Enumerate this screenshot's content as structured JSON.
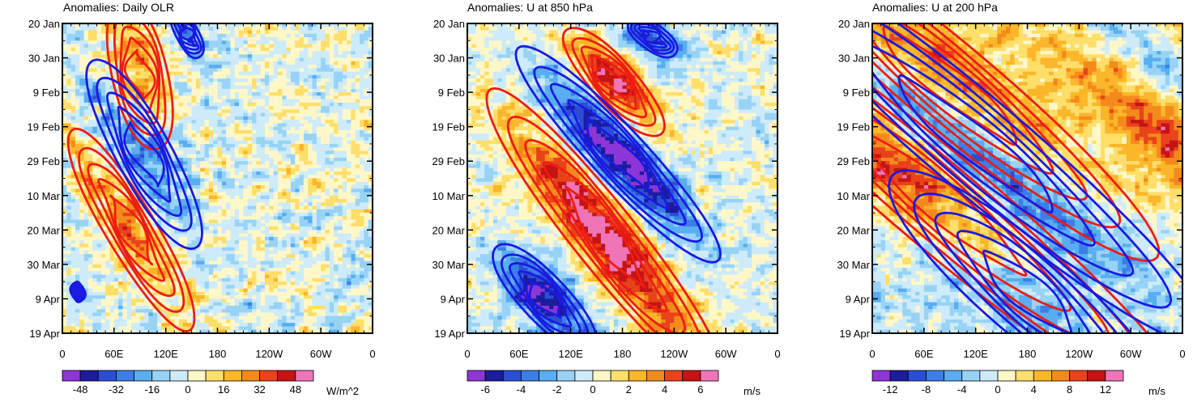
{
  "chart_data": [
    {
      "type": "heatmap",
      "title": "Anomalies: Daily OLR",
      "x_tick_labels": [
        "0",
        "60E",
        "120E",
        "180",
        "120W",
        "60W",
        "0"
      ],
      "x_ticks_deg": [
        0,
        60,
        120,
        180,
        240,
        300,
        360
      ],
      "xlim": [
        0,
        360
      ],
      "y_tick_labels": [
        "20 Jan",
        "30 Jan",
        "9 Feb",
        "19 Feb",
        "29 Feb",
        "10 Mar",
        "20 Mar",
        "30 Mar",
        "9 Apr",
        "19 Apr"
      ],
      "colorbar_labels": [
        "-48",
        "-32",
        "-16",
        "0",
        "16",
        "32",
        "48"
      ],
      "colorbar_levels": [
        -56,
        -48,
        -40,
        -32,
        -24,
        -16,
        -8,
        0,
        8,
        16,
        24,
        32,
        40,
        48,
        56
      ],
      "units": "W/m^2",
      "max_anomaly": 56,
      "red_contour_bands": [
        {
          "center_day": 15,
          "center_lon": 90,
          "lon_shift_per_day": 0.8,
          "width_deg": 22,
          "half_length_days": 11,
          "strength": 1.0
        },
        {
          "center_day": 60,
          "center_lon": 80,
          "lon_shift_per_day": 2.2,
          "width_deg": 22,
          "half_length_days": 15,
          "strength": 1.0
        }
      ],
      "blue_contour_bands": [
        {
          "center_day": 38,
          "center_lon": 95,
          "lon_shift_per_day": 2.0,
          "width_deg": 24,
          "half_length_days": 14,
          "strength": 1.0
        },
        {
          "center_day": 3,
          "center_lon": 145,
          "lon_shift_per_day": 1.5,
          "width_deg": 16,
          "half_length_days": 6,
          "strength": 0.6
        },
        {
          "center_day": 78,
          "center_lon": 18,
          "lon_shift_per_day": 0.5,
          "width_deg": 10,
          "half_length_days": 3,
          "strength": 0.5
        }
      ]
    },
    {
      "type": "heatmap",
      "title": "Anomalies: U at 850 hPa",
      "x_tick_labels": [
        "0",
        "60E",
        "120E",
        "180",
        "120W",
        "60W",
        "0"
      ],
      "x_ticks_deg": [
        0,
        60,
        120,
        180,
        240,
        300,
        360
      ],
      "xlim": [
        0,
        360
      ],
      "y_tick_labels": [
        "20 Jan",
        "30 Jan",
        "9 Feb",
        "19 Feb",
        "29 Feb",
        "10 Mar",
        "20 Mar",
        "30 Mar",
        "9 Apr",
        "19 Apr"
      ],
      "colorbar_labels": [
        "-6",
        "-4",
        "-2",
        "0",
        "2",
        "4",
        "6"
      ],
      "colorbar_levels": [
        -7,
        -6,
        -5,
        -4,
        -3,
        -2,
        -1,
        0,
        1,
        2,
        3,
        4,
        5,
        6,
        7
      ],
      "units": "m/s",
      "max_anomaly": 7,
      "red_contour_bands": [
        {
          "center_day": 17,
          "center_lon": 170,
          "lon_shift_per_day": 3.0,
          "width_deg": 22,
          "half_length_days": 8,
          "strength": 1.0
        },
        {
          "center_day": 62,
          "center_lon": 160,
          "lon_shift_per_day": 3.0,
          "width_deg": 28,
          "half_length_days": 20,
          "strength": 1.1
        }
      ],
      "blue_contour_bands": [
        {
          "center_day": 38,
          "center_lon": 175,
          "lon_shift_per_day": 3.5,
          "width_deg": 28,
          "half_length_days": 16,
          "strength": 1.0
        },
        {
          "center_day": 80,
          "center_lon": 90,
          "lon_shift_per_day": 3.0,
          "width_deg": 26,
          "half_length_days": 9,
          "strength": 0.9
        },
        {
          "center_day": 4,
          "center_lon": 215,
          "lon_shift_per_day": 3.0,
          "width_deg": 24,
          "half_length_days": 5,
          "strength": 0.6
        }
      ]
    },
    {
      "type": "heatmap",
      "title": "Anomalies: U at 200 hPa",
      "x_tick_labels": [
        "0",
        "60E",
        "120E",
        "180",
        "120W",
        "60W",
        "0"
      ],
      "x_ticks_deg": [
        0,
        60,
        120,
        180,
        240,
        300,
        360
      ],
      "xlim": [
        0,
        360
      ],
      "y_tick_labels": [
        "20 Jan",
        "30 Jan",
        "9 Feb",
        "19 Feb",
        "29 Feb",
        "10 Mar",
        "20 Mar",
        "30 Mar",
        "9 Apr",
        "19 Apr"
      ],
      "colorbar_labels": [
        "-12",
        "-8",
        "-4",
        "0",
        "4",
        "8",
        "12"
      ],
      "colorbar_levels": [
        -14,
        -12,
        -10,
        -8,
        -6,
        -4,
        -2,
        0,
        2,
        4,
        6,
        8,
        10,
        12,
        14
      ],
      "units": "m/s",
      "max_anomaly": 14,
      "red_contour_bands": [
        {
          "center_day": 18,
          "center_lon": 90,
          "lon_shift_per_day": 4.5,
          "width_deg": 50,
          "half_length_days": 26,
          "strength": 1.0
        },
        {
          "center_day": 52,
          "center_lon": 80,
          "lon_shift_per_day": 4.5,
          "width_deg": 55,
          "half_length_days": 32,
          "strength": 1.0
        }
      ],
      "blue_contour_bands": [
        {
          "center_day": 35,
          "center_lon": 120,
          "lon_shift_per_day": 4.5,
          "width_deg": 55,
          "half_length_days": 30,
          "strength": 1.0
        },
        {
          "center_day": 78,
          "center_lon": 180,
          "lon_shift_per_day": 4.0,
          "width_deg": 55,
          "half_length_days": 20,
          "strength": 0.9
        }
      ]
    }
  ]
}
